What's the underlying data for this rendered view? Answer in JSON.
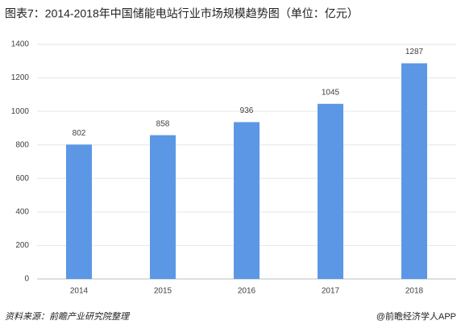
{
  "chart_data": {
    "type": "bar",
    "title": "图表7：2014-2018年中国储能电站行业市场规模趋势图（单位：亿元）",
    "categories": [
      "2014",
      "2015",
      "2016",
      "2017",
      "2018"
    ],
    "values": [
      802,
      858,
      936,
      1045,
      1287
    ],
    "color": "#5b97e5",
    "ylim": [
      0,
      1400
    ],
    "yticks": [
      0,
      200,
      400,
      600,
      800,
      1000,
      1200,
      1400
    ],
    "grid": true,
    "source": "资料来源：前瞻产业研究院整理",
    "credit": "@前瞻经济学人APP"
  }
}
